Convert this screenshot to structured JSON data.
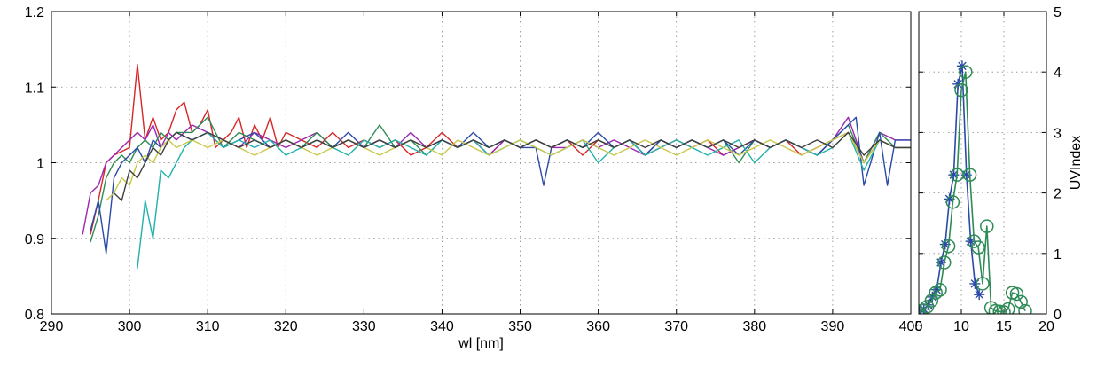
{
  "chart_data": [
    {
      "type": "line",
      "title": "",
      "xlabel": "wl [nm]",
      "ylabel": "",
      "xlim": [
        290,
        400
      ],
      "ylim": [
        0.8,
        1.2
      ],
      "x_ticks": [
        "290",
        "300",
        "310",
        "320",
        "330",
        "340",
        "350",
        "360",
        "370",
        "380",
        "390",
        "400"
      ],
      "y_ticks": [
        "0.8",
        "0.9",
        "1",
        "1.1",
        "1.2"
      ],
      "grid": true,
      "legend": "none",
      "series": [
        {
          "color": "#d62728",
          "x": [
            295,
            296,
            297,
            298,
            299,
            300,
            301,
            302,
            303,
            304,
            305,
            306,
            307,
            308,
            309,
            310,
            311,
            312,
            313,
            314,
            315,
            316,
            317,
            318,
            319,
            320,
            322,
            324,
            326,
            328,
            330,
            332,
            334,
            336,
            338,
            340,
            342,
            344,
            346,
            348,
            350,
            352,
            354,
            356,
            358,
            360,
            362,
            364,
            366,
            368,
            370,
            372,
            374,
            376,
            378,
            380,
            382,
            384,
            386,
            388,
            390,
            392,
            394,
            396,
            398,
            400
          ],
          "y": [
            0.905,
            0.95,
            1.0,
            1.01,
            1.015,
            1.02,
            1.13,
            1.03,
            1.06,
            1.03,
            1.04,
            1.07,
            1.08,
            1.04,
            1.05,
            1.07,
            1.02,
            1.03,
            1.04,
            1.06,
            1.02,
            1.05,
            1.03,
            1.06,
            1.02,
            1.04,
            1.03,
            1.02,
            1.04,
            1.02,
            1.03,
            1.02,
            1.03,
            1.01,
            1.02,
            1.04,
            1.02,
            1.03,
            1.01,
            1.03,
            1.02,
            1.03,
            1.02,
            1.03,
            1.01,
            1.03,
            1.02,
            1.03,
            1.01,
            1.02,
            1.03,
            1.02,
            1.03,
            1.01,
            1.02,
            1.03,
            1.02,
            1.03,
            1.01,
            1.02,
            1.03,
            1.04,
            1.0,
            1.03,
            1.02,
            1.02
          ]
        },
        {
          "color": "#9c27b0",
          "x": [
            294,
            295,
            296,
            297,
            298,
            299,
            300,
            301,
            302,
            303,
            304,
            305,
            306,
            308,
            310,
            312,
            314,
            316,
            318,
            320,
            322,
            324,
            326,
            328,
            330,
            332,
            334,
            336,
            338,
            340,
            342,
            344,
            346,
            348,
            350,
            352,
            354,
            356,
            358,
            360,
            362,
            364,
            366,
            368,
            370,
            372,
            374,
            376,
            378,
            380,
            382,
            384,
            386,
            388,
            390,
            392,
            394,
            396,
            398,
            400
          ],
          "y": [
            0.905,
            0.96,
            0.97,
            1.0,
            1.01,
            1.02,
            1.03,
            1.04,
            1.03,
            1.05,
            1.02,
            1.04,
            1.03,
            1.05,
            1.04,
            1.03,
            1.02,
            1.04,
            1.03,
            1.02,
            1.03,
            1.04,
            1.02,
            1.03,
            1.02,
            1.03,
            1.02,
            1.04,
            1.02,
            1.03,
            1.02,
            1.03,
            1.01,
            1.03,
            1.02,
            1.03,
            1.02,
            1.02,
            1.03,
            1.02,
            1.03,
            1.02,
            1.01,
            1.03,
            1.02,
            1.03,
            1.02,
            1.01,
            1.02,
            1.03,
            1.02,
            1.03,
            1.02,
            1.01,
            1.03,
            1.06,
            1.0,
            1.04,
            1.03,
            1.03
          ]
        },
        {
          "color": "#2e8b57",
          "x": [
            295,
            296,
            297,
            298,
            299,
            300,
            301,
            302,
            303,
            304,
            305,
            306,
            308,
            310,
            312,
            314,
            316,
            318,
            320,
            322,
            324,
            326,
            328,
            330,
            332,
            334,
            336,
            338,
            340,
            342,
            344,
            346,
            348,
            350,
            352,
            354,
            356,
            358,
            360,
            362,
            364,
            366,
            368,
            370,
            372,
            374,
            376,
            378,
            380,
            382,
            384,
            386,
            388,
            390,
            392,
            394,
            396,
            398,
            400
          ],
          "y": [
            0.895,
            0.93,
            0.98,
            1.0,
            1.01,
            1.0,
            1.02,
            1.03,
            1.02,
            1.04,
            1.03,
            1.04,
            1.04,
            1.06,
            1.02,
            1.04,
            1.03,
            1.02,
            1.03,
            1.02,
            1.04,
            1.02,
            1.03,
            1.02,
            1.05,
            1.02,
            1.03,
            1.01,
            1.03,
            1.02,
            1.03,
            1.02,
            1.03,
            1.02,
            1.03,
            1.02,
            1.03,
            1.02,
            1.03,
            1.02,
            1.03,
            1.01,
            1.03,
            1.02,
            1.03,
            1.02,
            1.03,
            1.0,
            1.03,
            1.02,
            1.03,
            1.02,
            1.01,
            1.03,
            1.05,
            1.0,
            1.04,
            1.02,
            1.02
          ]
        },
        {
          "color": "#2b4aa8",
          "x": [
            295,
            296,
            297,
            298,
            299,
            300,
            301,
            302,
            303,
            304,
            305,
            306,
            308,
            310,
            312,
            314,
            316,
            318,
            320,
            322,
            324,
            326,
            328,
            330,
            332,
            334,
            336,
            338,
            340,
            342,
            344,
            346,
            348,
            350,
            352,
            353,
            354,
            356,
            358,
            360,
            362,
            364,
            366,
            368,
            370,
            372,
            374,
            376,
            378,
            380,
            382,
            384,
            386,
            388,
            390,
            392,
            393,
            394,
            396,
            397,
            398,
            400
          ],
          "y": [
            0.91,
            0.95,
            0.88,
            0.98,
            1.0,
            1.01,
            1.02,
            1.0,
            1.03,
            1.02,
            1.03,
            1.04,
            1.03,
            1.04,
            1.02,
            1.03,
            1.04,
            1.02,
            1.03,
            1.02,
            1.03,
            1.02,
            1.04,
            1.02,
            1.03,
            1.02,
            1.03,
            1.02,
            1.03,
            1.02,
            1.04,
            1.02,
            1.03,
            1.02,
            1.02,
            0.97,
            1.02,
            1.03,
            1.02,
            1.04,
            1.02,
            1.03,
            1.01,
            1.03,
            1.02,
            1.03,
            1.02,
            1.03,
            1.01,
            1.03,
            1.02,
            1.03,
            1.02,
            1.01,
            1.03,
            1.05,
            1.06,
            0.97,
            1.04,
            0.97,
            1.03,
            1.03
          ]
        },
        {
          "color": "#20b2aa",
          "x": [
            301,
            302,
            303,
            304,
            305,
            306,
            307,
            308,
            310,
            312,
            314,
            316,
            318,
            320,
            322,
            324,
            326,
            328,
            330,
            332,
            334,
            336,
            338,
            340,
            342,
            344,
            346,
            348,
            350,
            352,
            354,
            356,
            358,
            360,
            362,
            364,
            366,
            368,
            370,
            372,
            374,
            376,
            378,
            380,
            382,
            384,
            386,
            388,
            390,
            392,
            394,
            396,
            398,
            400
          ],
          "y": [
            0.86,
            0.95,
            0.9,
            0.99,
            0.98,
            1.0,
            1.02,
            1.03,
            1.04,
            1.02,
            1.03,
            1.02,
            1.03,
            1.01,
            1.02,
            1.03,
            1.02,
            1.01,
            1.03,
            1.02,
            1.03,
            1.02,
            1.01,
            1.03,
            1.02,
            1.03,
            1.01,
            1.02,
            1.03,
            1.02,
            1.01,
            1.02,
            1.03,
            1.0,
            1.02,
            1.03,
            1.01,
            1.02,
            1.03,
            1.02,
            1.01,
            1.02,
            1.03,
            1.0,
            1.02,
            1.03,
            1.02,
            1.01,
            1.02,
            1.04,
            0.99,
            1.03,
            1.02,
            1.02
          ]
        },
        {
          "color": "#c8c84a",
          "x": [
            297,
            298,
            299,
            300,
            301,
            302,
            303,
            304,
            305,
            306,
            308,
            310,
            312,
            314,
            316,
            318,
            320,
            322,
            324,
            326,
            328,
            330,
            332,
            334,
            336,
            338,
            340,
            342,
            344,
            346,
            348,
            350,
            352,
            354,
            356,
            358,
            360,
            362,
            364,
            366,
            368,
            370,
            372,
            374,
            376,
            378,
            380,
            382,
            384,
            386,
            388,
            390,
            392,
            394,
            396,
            398,
            400
          ],
          "y": [
            0.95,
            0.96,
            0.98,
            0.97,
            1.0,
            1.01,
            1.0,
            1.02,
            1.03,
            1.02,
            1.03,
            1.02,
            1.03,
            1.02,
            1.01,
            1.02,
            1.03,
            1.02,
            1.01,
            1.02,
            1.03,
            1.02,
            1.01,
            1.02,
            1.03,
            1.02,
            1.01,
            1.03,
            1.02,
            1.01,
            1.02,
            1.03,
            1.02,
            1.01,
            1.02,
            1.03,
            1.02,
            1.01,
            1.02,
            1.03,
            1.02,
            1.01,
            1.02,
            1.03,
            1.02,
            1.01,
            1.02,
            1.03,
            1.02,
            1.01,
            1.02,
            1.03,
            1.04,
            1.0,
            1.03,
            1.02,
            1.02
          ]
        },
        {
          "color": "#404040",
          "x": [
            298,
            299,
            300,
            301,
            302,
            303,
            304,
            305,
            306,
            308,
            310,
            312,
            314,
            316,
            318,
            320,
            322,
            324,
            326,
            328,
            330,
            332,
            334,
            336,
            338,
            340,
            342,
            344,
            346,
            348,
            350,
            352,
            354,
            356,
            358,
            360,
            362,
            364,
            366,
            368,
            370,
            372,
            374,
            376,
            378,
            380,
            382,
            384,
            386,
            388,
            390,
            392,
            394,
            396,
            398,
            400
          ],
          "y": [
            0.96,
            0.95,
            0.99,
            0.98,
            1.0,
            1.02,
            1.01,
            1.03,
            1.04,
            1.03,
            1.04,
            1.03,
            1.02,
            1.03,
            1.02,
            1.03,
            1.02,
            1.03,
            1.02,
            1.03,
            1.02,
            1.03,
            1.02,
            1.03,
            1.02,
            1.03,
            1.02,
            1.03,
            1.02,
            1.03,
            1.02,
            1.03,
            1.02,
            1.03,
            1.02,
            1.03,
            1.02,
            1.03,
            1.02,
            1.03,
            1.02,
            1.03,
            1.02,
            1.03,
            1.02,
            1.03,
            1.02,
            1.03,
            1.02,
            1.03,
            1.02,
            1.04,
            1.01,
            1.03,
            1.02,
            1.02
          ]
        }
      ]
    },
    {
      "type": "line",
      "title": "",
      "xlabel": "",
      "ylabel": "UVIndex",
      "xlim": [
        5,
        20
      ],
      "ylim": [
        0,
        5
      ],
      "x_ticks": [
        "5",
        "10",
        "15",
        "20"
      ],
      "y_ticks": [
        "0",
        "1",
        "2",
        "3",
        "4",
        "5"
      ],
      "grid": true,
      "legend": "none",
      "series": [
        {
          "marker": "star",
          "color": "#2b4aa8",
          "x": [
            5.1,
            5.6,
            6.1,
            6.6,
            7.1,
            7.6,
            8.1,
            8.6,
            9.1,
            9.6,
            10.1,
            10.6,
            11.1,
            11.6,
            12.1
          ],
          "y": [
            0.03,
            0.08,
            0.15,
            0.28,
            0.4,
            0.85,
            1.15,
            1.9,
            2.3,
            3.8,
            4.1,
            2.3,
            1.2,
            0.5,
            0.32
          ]
        },
        {
          "marker": "circle",
          "color": "#2e8b57",
          "x": [
            5.0,
            5.5,
            6.0,
            6.5,
            7.0,
            7.5,
            8.0,
            8.5,
            9.0,
            9.5,
            10.0,
            10.5,
            11.0,
            11.5,
            12.0,
            12.5,
            13.0,
            13.5,
            14.0,
            14.5,
            15.0,
            15.5,
            16.0,
            16.5,
            17.0,
            17.5
          ],
          "y": [
            0.02,
            0.06,
            0.12,
            0.22,
            0.35,
            0.4,
            0.85,
            1.12,
            1.85,
            2.3,
            3.7,
            4.0,
            2.3,
            1.2,
            1.1,
            0.5,
            1.45,
            0.1,
            0.05,
            0.04,
            0.03,
            0.08,
            0.35,
            0.33,
            0.2,
            0.05
          ]
        }
      ]
    }
  ]
}
